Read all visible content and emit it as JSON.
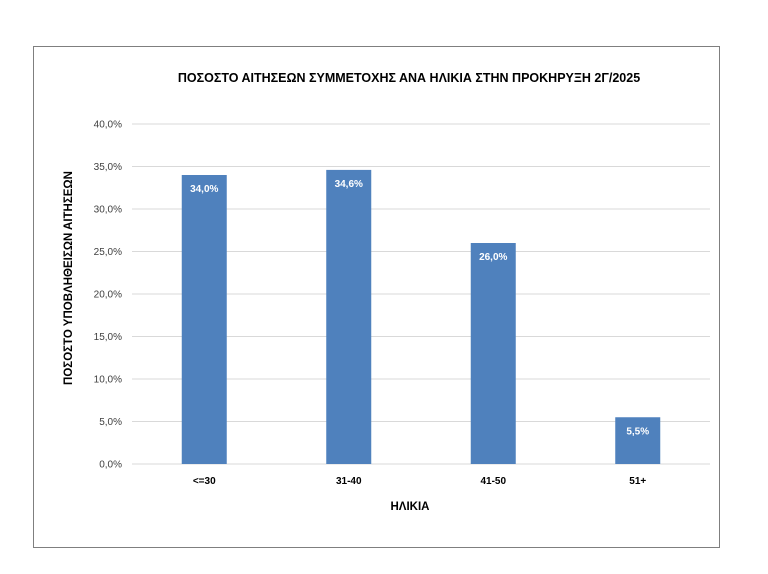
{
  "chart_data": {
    "type": "bar",
    "title": "ΠΟΣΟΣΤΟ ΑΙΤΗΣΕΩΝ ΣΥΜΜΕΤΟΧΗΣ ΑΝΑ ΗΛΙΚΙΑ ΣΤΗΝ ΠΡΟΚΗΡΥΞΗ 2Γ/2025",
    "xlabel": "ΗΛΙΚΙΑ",
    "ylabel": "ΠΟΣΟΣΤΟ ΥΠΟΒΛΗΘΕΙΣΩΝ ΑΙΤΗΣΕΩΝ",
    "categories": [
      "<=30",
      "31-40",
      "41-50",
      "51+"
    ],
    "values": [
      34.0,
      34.6,
      26.0,
      5.5
    ],
    "data_labels": [
      "34,0%",
      "34,6%",
      "26,0%",
      "5,5%"
    ],
    "ylim": [
      0,
      40
    ],
    "yticks": [
      0,
      5,
      10,
      15,
      20,
      25,
      30,
      35,
      40
    ],
    "ytick_labels": [
      "0,0%",
      "5,0%",
      "10,0%",
      "15,0%",
      "20,0%",
      "25,0%",
      "30,0%",
      "35,0%",
      "40,0%"
    ],
    "grid": true,
    "legend": "none",
    "bar_color": "#4f81bd",
    "grid_color": "#d9d9d9"
  }
}
